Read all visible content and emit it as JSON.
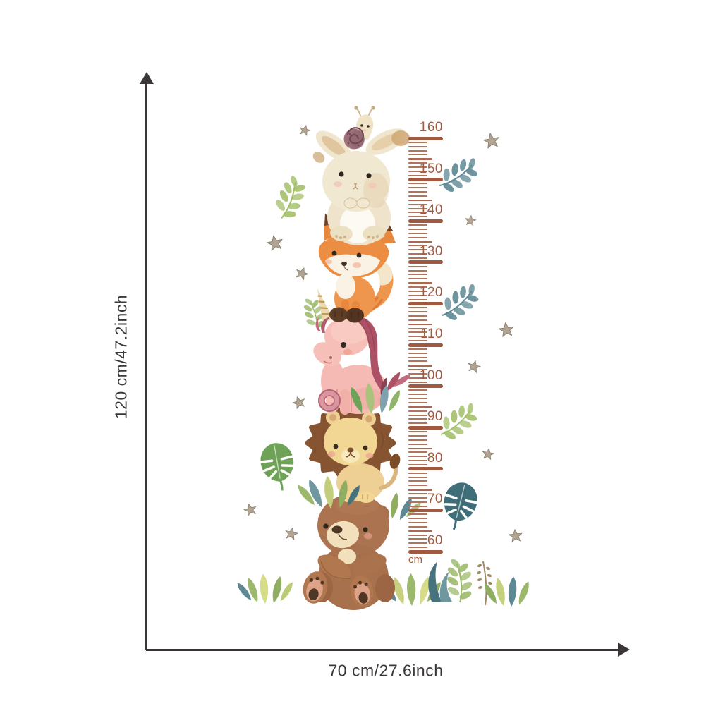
{
  "page": {
    "background": "#ffffff",
    "description": "kids height growth chart wall sticker size diagram"
  },
  "dimensions": {
    "height_label": "120 cm/47.2inch",
    "width_label": "70 cm/27.6inch",
    "line_color": "#3a3537",
    "text_color": "#3b3738"
  },
  "ruler": {
    "unit_label": "cm",
    "marks": [
      "160",
      "150",
      "140",
      "130",
      "120",
      "110",
      "100",
      "90",
      "80",
      "70",
      "60"
    ],
    "major_color": "#a0583f",
    "minor_color": "#b1735a",
    "number_color": "#9f5b42"
  },
  "illustration": {
    "animals_top_to_bottom": [
      "snail",
      "bunny",
      "fox",
      "unicorn",
      "lion",
      "bear"
    ],
    "decorations": [
      "stars",
      "leaf-sprigs",
      "monstera-leaves",
      "grass-tufts"
    ]
  }
}
